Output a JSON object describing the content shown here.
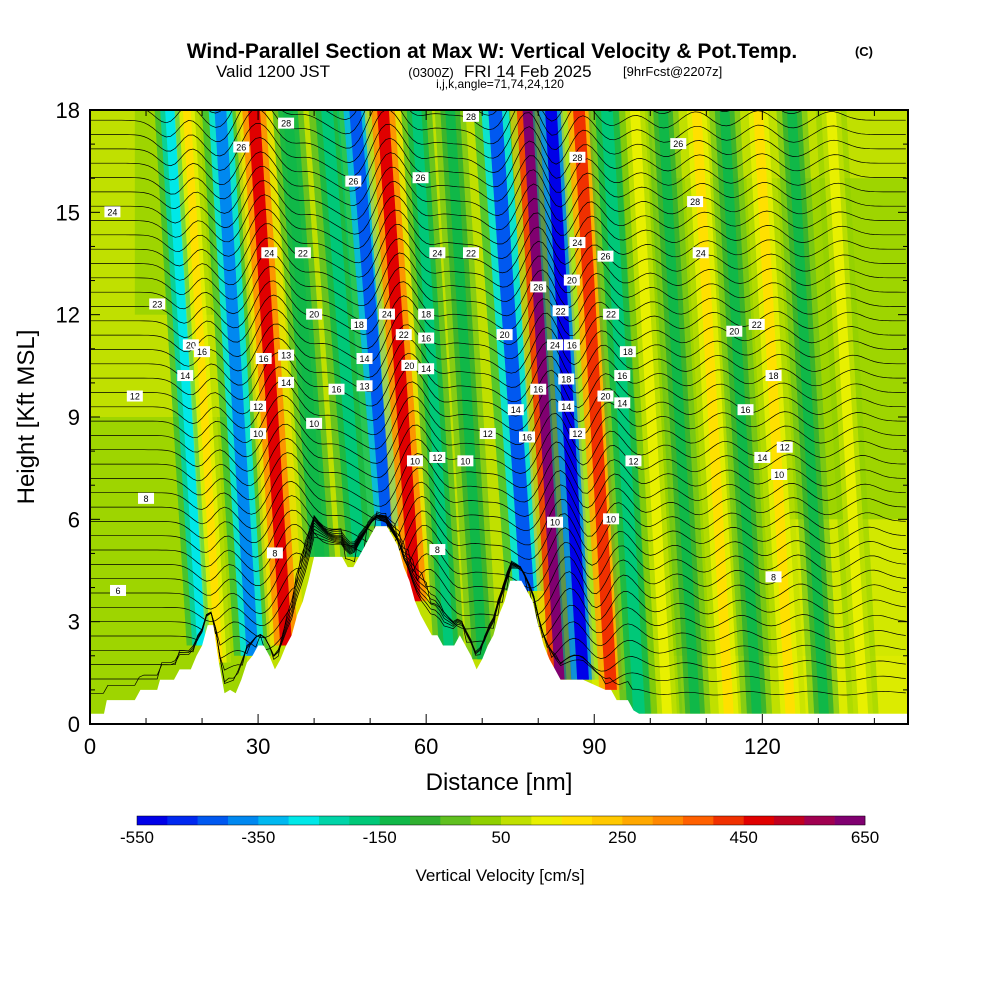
{
  "chart_data": {
    "type": "heatmap",
    "title": "Wind-Parallel Section at Max W: Vertical Velocity & Pot.Temp.",
    "title_mark": "(C)",
    "subtitle": {
      "prefix": "Valid 1200 JST",
      "utc": "(0300Z)",
      "day": "FRI 14 Feb 2025",
      "fcst": "[9hrFcst@2207z]"
    },
    "index_line": "i,j,k,angle=71,74,24,120",
    "xlabel": "Distance [nm]",
    "ylabel": "Height [Kft MSL]",
    "xlim": [
      0,
      146
    ],
    "ylim": [
      0,
      18
    ],
    "x_ticks": [
      "0",
      "30",
      "60",
      "90",
      "120"
    ],
    "y_ticks": [
      "0",
      "3",
      "6",
      "9",
      "12",
      "15",
      "18"
    ],
    "colorbar": {
      "label": "Vertical Velocity [cm/s]",
      "tick_labels": [
        "-550",
        "-350",
        "-150",
        "50",
        "250",
        "450",
        "650"
      ],
      "range": [
        -550,
        650
      ],
      "step": 50,
      "colors": [
        "#0000e8",
        "#0028f0",
        "#0058f0",
        "#0088f0",
        "#00b8f0",
        "#00e8e8",
        "#00d4a8",
        "#00c878",
        "#10b848",
        "#30b030",
        "#60c020",
        "#90d000",
        "#c0e000",
        "#e8f000",
        "#ffe000",
        "#ffc800",
        "#ffa800",
        "#ff8800",
        "#ff6000",
        "#f03000",
        "#e00000",
        "#c00020",
        "#a00050",
        "#800070"
      ]
    },
    "theta_contour_labels": [
      "6",
      "8",
      "10",
      "12",
      "13",
      "14",
      "16",
      "18",
      "20",
      "22",
      "24",
      "26",
      "28"
    ],
    "terrain_kft": [
      [
        0,
        0.3
      ],
      [
        2.5,
        0.3
      ],
      [
        3,
        0.7
      ],
      [
        8,
        0.7
      ],
      [
        9,
        1.0
      ],
      [
        12,
        1.0
      ],
      [
        12.5,
        1.3
      ],
      [
        15,
        1.3
      ],
      [
        16,
        1.6
      ],
      [
        18,
        1.6
      ],
      [
        19,
        2.0
      ],
      [
        20,
        2.3
      ],
      [
        21,
        2.9
      ],
      [
        22,
        2.9
      ],
      [
        23,
        1.8
      ],
      [
        24,
        0.9
      ],
      [
        25,
        1.0
      ],
      [
        26,
        0.9
      ],
      [
        27,
        1.3
      ],
      [
        28,
        1.8
      ],
      [
        29,
        2.0
      ],
      [
        30,
        2.3
      ],
      [
        31,
        2.3
      ],
      [
        32,
        2.0
      ],
      [
        33,
        1.6
      ],
      [
        34,
        1.9
      ],
      [
        35,
        2.3
      ],
      [
        36,
        2.6
      ],
      [
        37,
        3.2
      ],
      [
        38,
        3.6
      ],
      [
        39,
        4.2
      ],
      [
        40,
        4.9
      ],
      [
        45,
        4.9
      ],
      [
        46,
        4.6
      ],
      [
        47,
        4.6
      ],
      [
        48,
        4.9
      ],
      [
        49,
        5.2
      ],
      [
        50,
        5.5
      ],
      [
        51,
        5.8
      ],
      [
        53,
        5.8
      ],
      [
        54,
        5.5
      ],
      [
        55,
        5.2
      ],
      [
        56,
        4.6
      ],
      [
        57,
        4.2
      ],
      [
        58,
        3.6
      ],
      [
        59,
        3.2
      ],
      [
        60,
        2.9
      ],
      [
        61,
        2.6
      ],
      [
        62,
        2.6
      ],
      [
        63,
        2.3
      ],
      [
        65,
        2.3
      ],
      [
        66,
        2.6
      ],
      [
        67,
        2.3
      ],
      [
        68,
        2.0
      ],
      [
        69,
        1.6
      ],
      [
        70,
        1.9
      ],
      [
        71,
        2.3
      ],
      [
        72,
        2.6
      ],
      [
        73,
        3.2
      ],
      [
        74,
        3.6
      ],
      [
        75,
        4.2
      ],
      [
        77,
        4.2
      ],
      [
        78,
        3.9
      ],
      [
        79,
        3.6
      ],
      [
        80,
        2.9
      ],
      [
        81,
        2.3
      ],
      [
        82,
        1.9
      ],
      [
        83,
        1.6
      ],
      [
        84,
        1.3
      ],
      [
        88,
        1.3
      ],
      [
        92,
        1.0
      ],
      [
        93,
        1.0
      ],
      [
        94,
        0.7
      ],
      [
        96,
        0.7
      ],
      [
        97,
        0.4
      ],
      [
        98,
        0.3
      ],
      [
        146,
        0.3
      ]
    ],
    "velocity_bands": [
      {
        "x": 20,
        "w": 2.5,
        "v": -300
      },
      {
        "x": 23,
        "w": 2,
        "v": 150
      },
      {
        "x": 29,
        "w": 3,
        "v": -380
      },
      {
        "x": 35,
        "w": 3,
        "v": 450
      },
      {
        "x": 41,
        "w": 2.5,
        "v": -150
      },
      {
        "x": 48,
        "w": 3,
        "v": -200
      },
      {
        "x": 53,
        "w": 3,
        "v": -450
      },
      {
        "x": 58,
        "w": 3,
        "v": 480
      },
      {
        "x": 64,
        "w": 2.5,
        "v": -180
      },
      {
        "x": 70,
        "w": 2.5,
        "v": -120
      },
      {
        "x": 78,
        "w": 3.5,
        "v": -420
      },
      {
        "x": 84,
        "w": 3,
        "v": 600
      },
      {
        "x": 88,
        "w": 3,
        "v": -520
      },
      {
        "x": 93,
        "w": 3,
        "v": 420
      },
      {
        "x": 98,
        "w": 3,
        "v": -160
      },
      {
        "x": 103,
        "w": 2.5,
        "v": 120
      },
      {
        "x": 108,
        "w": 2.5,
        "v": -140
      },
      {
        "x": 114,
        "w": 2.5,
        "v": 150
      },
      {
        "x": 119,
        "w": 2.5,
        "v": -110
      },
      {
        "x": 125,
        "w": 2.5,
        "v": 160
      },
      {
        "x": 131,
        "w": 2.5,
        "v": -130
      },
      {
        "x": 138,
        "w": 2.5,
        "v": 140
      }
    ]
  }
}
